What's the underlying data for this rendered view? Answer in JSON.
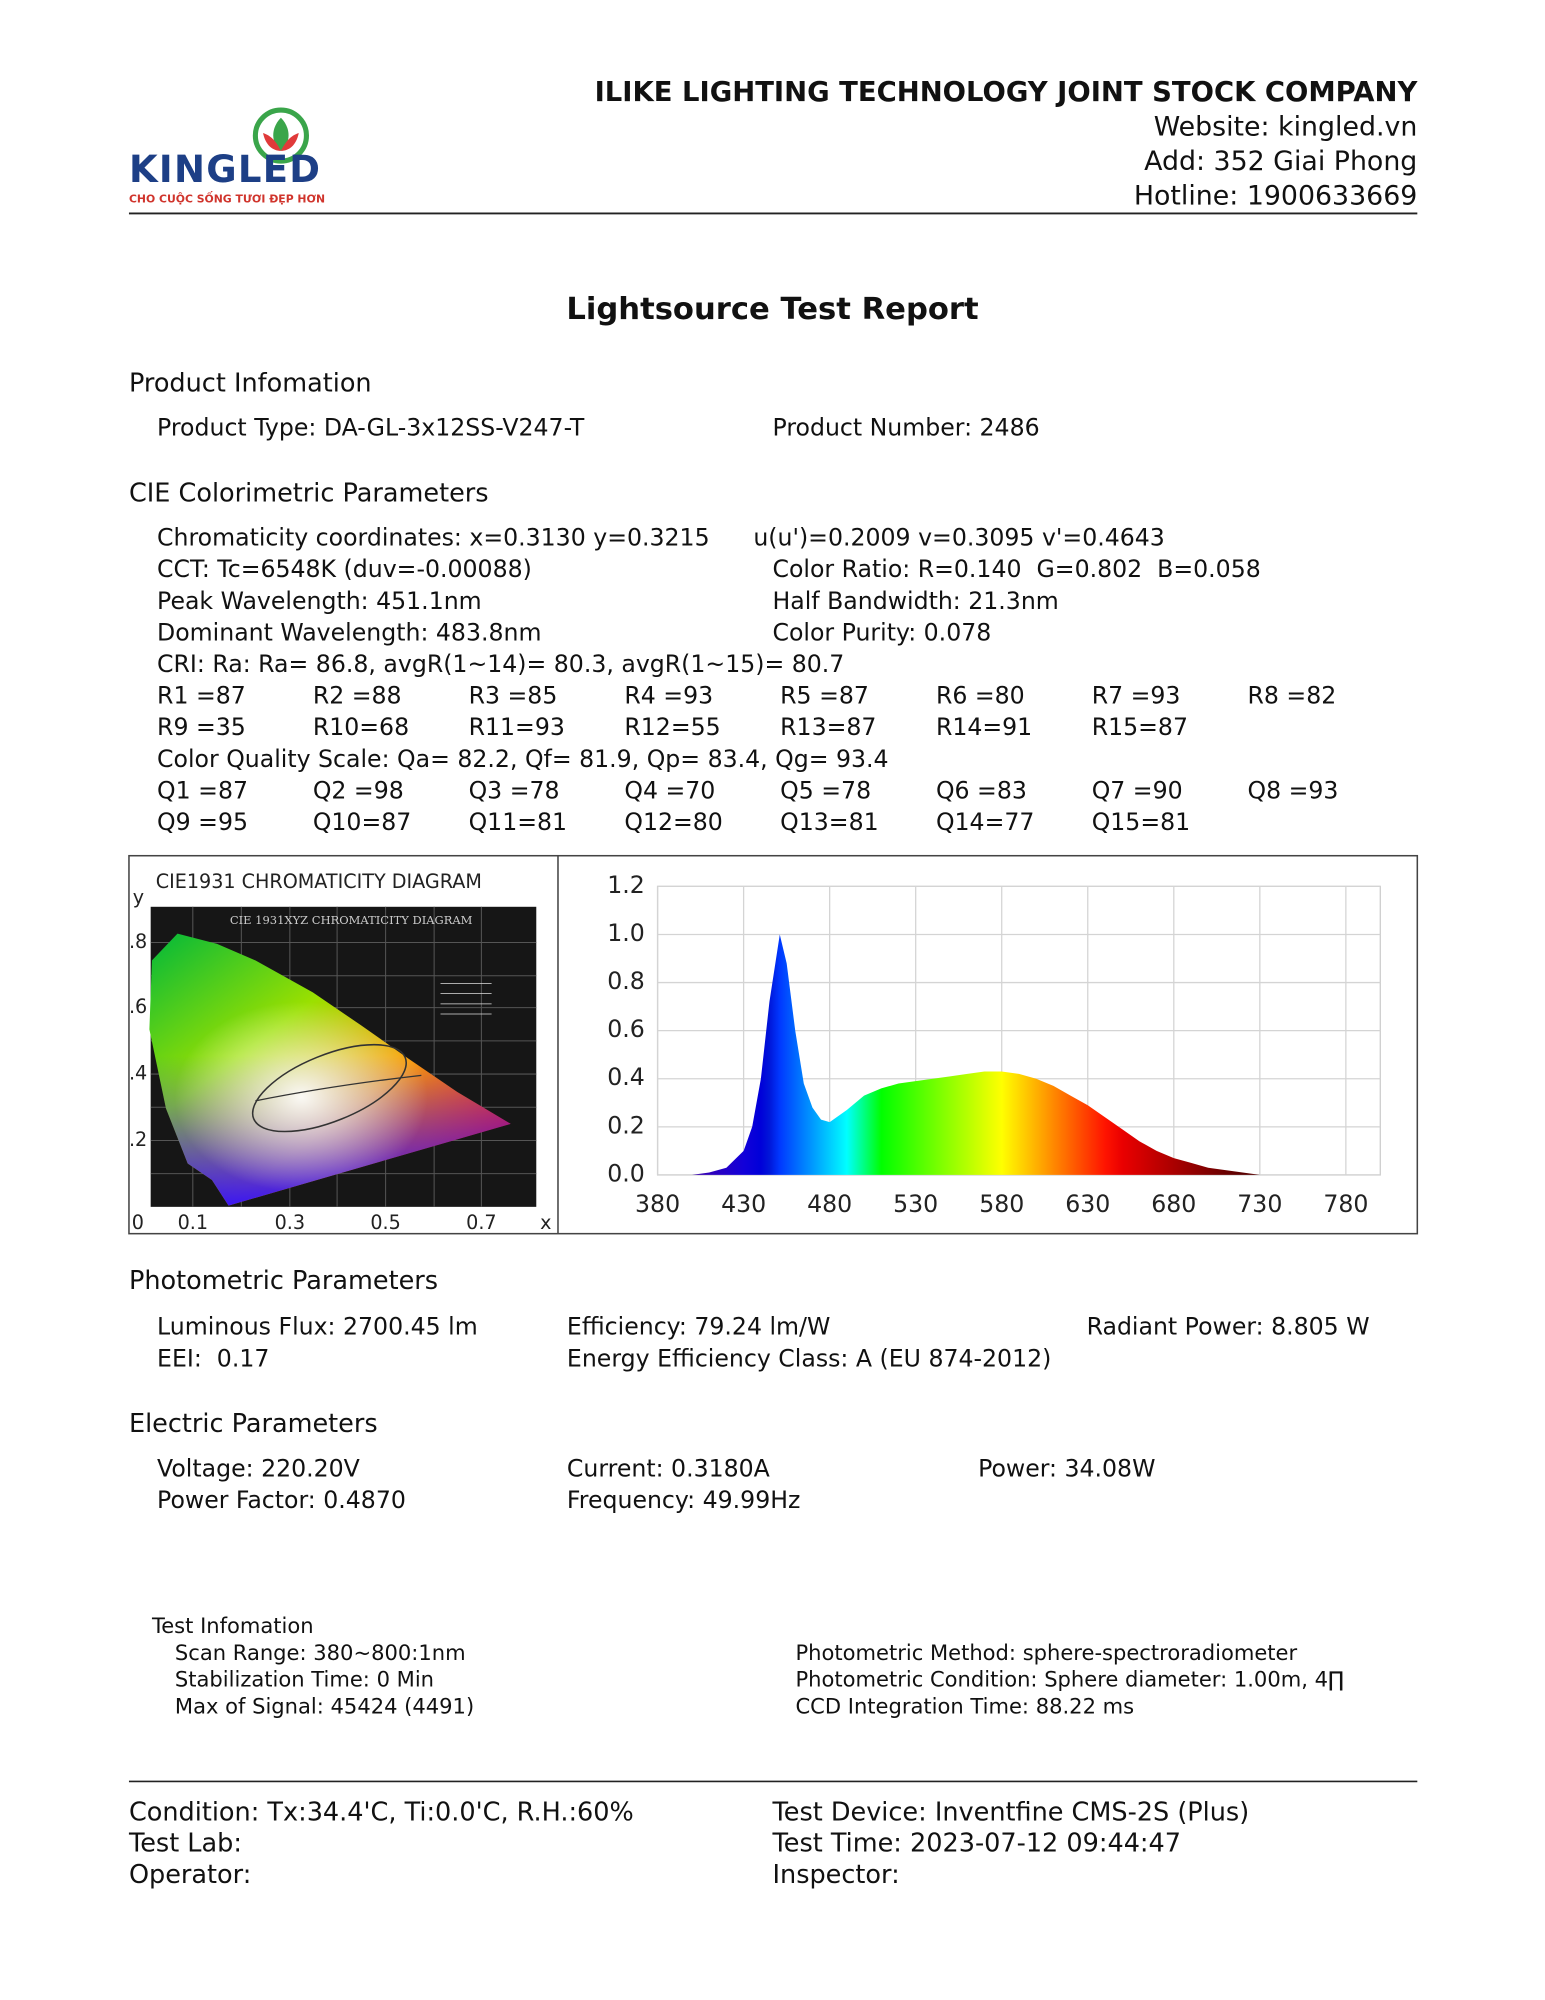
{
  "header": {
    "logo": "KINGLED",
    "slogan": "CHO CUỘC SỐNG TƯƠI ĐẸP HƠN",
    "company": "ILIKE LIGHTING TECHNOLOGY JOINT STOCK COMPANY",
    "website": "Website: kingled.vn",
    "address": "Add: 352 Giai Phong",
    "hotline": "Hotline: 1900633669"
  },
  "title": "Lightsource Test Report",
  "product": {
    "heading": "Product Infomation",
    "rows": [
      [
        "Product Type: DA-GL-3x12SS-V247-T",
        "Product Number: 2486"
      ]
    ]
  },
  "cie": {
    "heading": "CIE Colorimetric Parameters",
    "rows": [
      [
        "Chromaticity coordinates: x=0.3130 y=0.3215",
        "u(u')=0.2009 v=0.3095 v'=0.4643"
      ],
      [
        "CCT: Tc=6548K (duv=-0.00088)",
        "Color Ratio: R=0.140  G=0.802  B=0.058"
      ],
      [
        "Peak Wavelength: 451.1nm",
        "Half Bandwidth: 21.3nm"
      ],
      [
        "Dominant Wavelength: 483.8nm",
        "Color Purity: 0.078"
      ],
      [
        "CRI: Ra: Ra= 86.8, avgR(1~14)= 80.3, avgR(1~15)= 80.7"
      ],
      [
        "R1 =87",
        "R2 =88",
        "R3 =85",
        "R4 =93",
        "R5 =87",
        "R6 =80",
        "R7 =93",
        "R8 =82"
      ],
      [
        "R9 =35",
        "R10=68",
        "R11=93",
        "R12=55",
        "R13=87",
        "R14=91",
        "R15=87"
      ],
      [
        "Color Quality Scale: Qa= 82.2, Qf= 81.9, Qp= 83.4, Qg= 93.4"
      ],
      [
        "Q1 =87",
        "Q2 =98",
        "Q3 =78",
        "Q4 =70",
        "Q5 =78",
        "Q6 =83",
        "Q7 =90",
        "Q8 =93"
      ],
      [
        "Q9 =95",
        "Q10=87",
        "Q11=81",
        "Q12=80",
        "Q13=81",
        "Q14=77",
        "Q15=81"
      ]
    ]
  },
  "cie_diagram": {
    "title": "CIE1931 CHROMATICITY DIAGRAM",
    "inner_title": "CIE 1931XYZ CHROMATICITY DIAGRAM",
    "y_label": "y",
    "x_label": "x",
    "y_ticks": [
      ".8",
      ".6",
      ".4",
      ".2"
    ],
    "x_ticks": [
      "0",
      "0.1",
      "0.3",
      "0.5",
      "0.7"
    ]
  },
  "chart_data": {
    "type": "area",
    "x": [
      380,
      390,
      400,
      410,
      420,
      430,
      435,
      440,
      445,
      451,
      455,
      460,
      465,
      470,
      475,
      480,
      490,
      500,
      510,
      520,
      530,
      540,
      550,
      560,
      570,
      580,
      590,
      600,
      610,
      620,
      630,
      640,
      650,
      660,
      670,
      680,
      690,
      700,
      710,
      720,
      730,
      740,
      760,
      780
    ],
    "values": [
      0,
      0,
      0,
      0.01,
      0.03,
      0.1,
      0.2,
      0.4,
      0.72,
      1.0,
      0.88,
      0.6,
      0.38,
      0.28,
      0.23,
      0.22,
      0.27,
      0.33,
      0.36,
      0.38,
      0.39,
      0.4,
      0.41,
      0.42,
      0.43,
      0.43,
      0.42,
      0.4,
      0.37,
      0.33,
      0.29,
      0.24,
      0.19,
      0.14,
      0.1,
      0.07,
      0.05,
      0.03,
      0.02,
      0.01,
      0,
      0,
      0,
      0
    ],
    "xlim": [
      380,
      800
    ],
    "ylim": [
      0,
      1.2
    ],
    "xticks": [
      380,
      430,
      480,
      530,
      580,
      630,
      680,
      730,
      780
    ],
    "yticks": [
      {
        "value": 0,
        "label": "0.0"
      },
      {
        "value": 0.2,
        "label": "0.2"
      },
      {
        "value": 0.4,
        "label": "0.4"
      },
      {
        "value": 0.6,
        "label": "0.6"
      },
      {
        "value": 0.8,
        "label": "0.8"
      },
      {
        "value": 1,
        "label": "1.0"
      },
      {
        "value": 1.2,
        "label": "1.2"
      }
    ],
    "grid": true
  },
  "photometric": {
    "heading": "Photometric Parameters",
    "rows": [
      [
        "Luminous Flux: 2700.45 lm",
        "Efficiency: 79.24 lm/W",
        "Radiant Power: 8.805 W"
      ],
      [
        "EEI:  0.17",
        "Energy Efficiency Class: A (EU 874-2012)"
      ]
    ]
  },
  "electric": {
    "heading": "Electric Parameters",
    "rows": [
      [
        "Voltage: 220.20V",
        "Current: 0.3180A",
        "Power: 34.08W"
      ],
      [
        "Power Factor: 0.4870",
        "Frequency: 49.99Hz"
      ]
    ]
  },
  "test_info": {
    "heading": "Test Infomation",
    "left": [
      "Scan Range: 380~800:1nm",
      "Stabilization Time: 0 Min",
      "Max of Signal: 45424 (4491)"
    ],
    "right": [
      "Photometric Method: sphere-spectroradiometer",
      "Photometric Condition: Sphere diameter: 1.00m, 4∏",
      "CCD Integration Time: 88.22 ms"
    ]
  },
  "footer": {
    "rows": [
      [
        "Condition: Tx:34.4'C, Ti:0.0'C, R.H.:60%",
        "Test Device: Inventfine CMS-2S (Plus)"
      ],
      [
        "Test Lab:",
        "Test Time: 2023-07-12 09:44:47"
      ],
      [
        "Operator:",
        "Inspector:"
      ]
    ]
  }
}
